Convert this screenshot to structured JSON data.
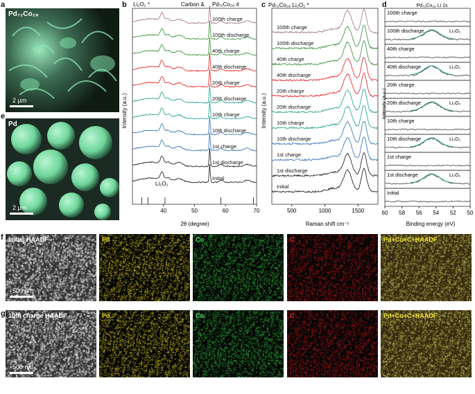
{
  "panels": {
    "a": {
      "letter": "a",
      "label": "Pd₇₂Co₂₈",
      "scale": "2 µm"
    },
    "e": {
      "letter": "e",
      "label": "Pd",
      "scale": "2 µm"
    },
    "b": {
      "letter": "b"
    },
    "c": {
      "letter": "c"
    },
    "d": {
      "letter": "d"
    },
    "f": {
      "letter": "f"
    },
    "g": {
      "letter": "g"
    }
  },
  "chart_data": [
    {
      "type": "line",
      "panel": "b",
      "title_items": [
        "Li₂O₂ *",
        "Carbon &",
        "Pd₇₂Co₂₈ #"
      ],
      "xlabel": "2θ (degree)",
      "ylabel": "Intensity (a.u.)",
      "xlim": [
        30,
        70
      ],
      "xticks": [
        "40",
        "50",
        "60",
        "70"
      ],
      "reference_label": "Li₂O₂",
      "series": [
        {
          "name": "100th charge",
          "color": "#a06d85"
        },
        {
          "name": "100th discharge",
          "color": "#2e8b2e"
        },
        {
          "name": "40th charge",
          "color": "#2e8b2e"
        },
        {
          "name": "40th discharge",
          "color": "#e31a1c"
        },
        {
          "name": "20th charge",
          "color": "#e31a1c"
        },
        {
          "name": "20th discharge",
          "color": "#1b9e8a"
        },
        {
          "name": "10th charge",
          "color": "#1b9e8a"
        },
        {
          "name": "10th discharge",
          "color": "#2a6db5"
        },
        {
          "name": "1st charge",
          "color": "#2a6db5"
        },
        {
          "name": "1st discharge",
          "color": "#111111"
        },
        {
          "name": "Initial",
          "color": "#111111"
        }
      ]
    },
    {
      "type": "line",
      "panel": "c",
      "title": "Pd₇₂Co₂₈  Li₂O₂ *",
      "xlabel": "Raman shift cm⁻¹",
      "ylabel": "Intensity (a.u.)",
      "xlim": [
        200,
        1800
      ],
      "xticks": [
        "500",
        "1000",
        "1500"
      ],
      "series": [
        {
          "name": "100th charge",
          "color": "#a06d85"
        },
        {
          "name": "100th discharge",
          "color": "#2e8b2e"
        },
        {
          "name": "40th charge",
          "color": "#2e8b2e"
        },
        {
          "name": "40th discharge",
          "color": "#e31a1c"
        },
        {
          "name": "20th charge",
          "color": "#e31a1c"
        },
        {
          "name": "20th discharge",
          "color": "#1b9e8a"
        },
        {
          "name": "10th charge",
          "color": "#1b9e8a"
        },
        {
          "name": "10th discharge",
          "color": "#2a6db5"
        },
        {
          "name": "1st charge",
          "color": "#2a6db5"
        },
        {
          "name": "1st discharge",
          "color": "#111111"
        },
        {
          "name": "Initial",
          "color": "#111111"
        }
      ]
    },
    {
      "type": "line",
      "panel": "d",
      "title": "Pd₇₂Co₂₈ Li 1s",
      "xlabel": "Binding energy (eV)",
      "ylabel": "Intensity (a.u.)",
      "xlim": [
        60,
        50
      ],
      "xticks": [
        "60",
        "58",
        "56",
        "54",
        "52",
        "50"
      ],
      "peak_label": "Li₂O₂",
      "series": [
        {
          "name": "100th charge",
          "peak": false
        },
        {
          "name": "100th discharge",
          "peak": true
        },
        {
          "name": "40th charge",
          "peak": false
        },
        {
          "name": "40th discharge",
          "peak": true
        },
        {
          "name": "20th charge",
          "peak": false
        },
        {
          "name": "20th discharge",
          "peak": true
        },
        {
          "name": "10th charge",
          "peak": false
        },
        {
          "name": "10th discharge",
          "peak": true
        },
        {
          "name": "1st charge",
          "peak": false
        },
        {
          "name": "1st discharge",
          "peak": true
        },
        {
          "name": "Initial",
          "peak": false
        }
      ]
    }
  ],
  "maps": {
    "f": {
      "labels": [
        "Initial HAADF",
        "Pd",
        "Co",
        "C",
        "Pd+Co+C+HAADF"
      ],
      "scale": "500 nm"
    },
    "g": {
      "labels": [
        "10th charge HAADF",
        "Pd",
        "Co",
        "C",
        "Pd+Co+C+HAADF"
      ],
      "scale": "500 nm"
    }
  },
  "colors": {
    "sem_green": "#7fe0a8",
    "pd_map": "#e0d020",
    "co_map": "#30c040",
    "c_map": "#c01818",
    "overlay": "#c8d860"
  }
}
